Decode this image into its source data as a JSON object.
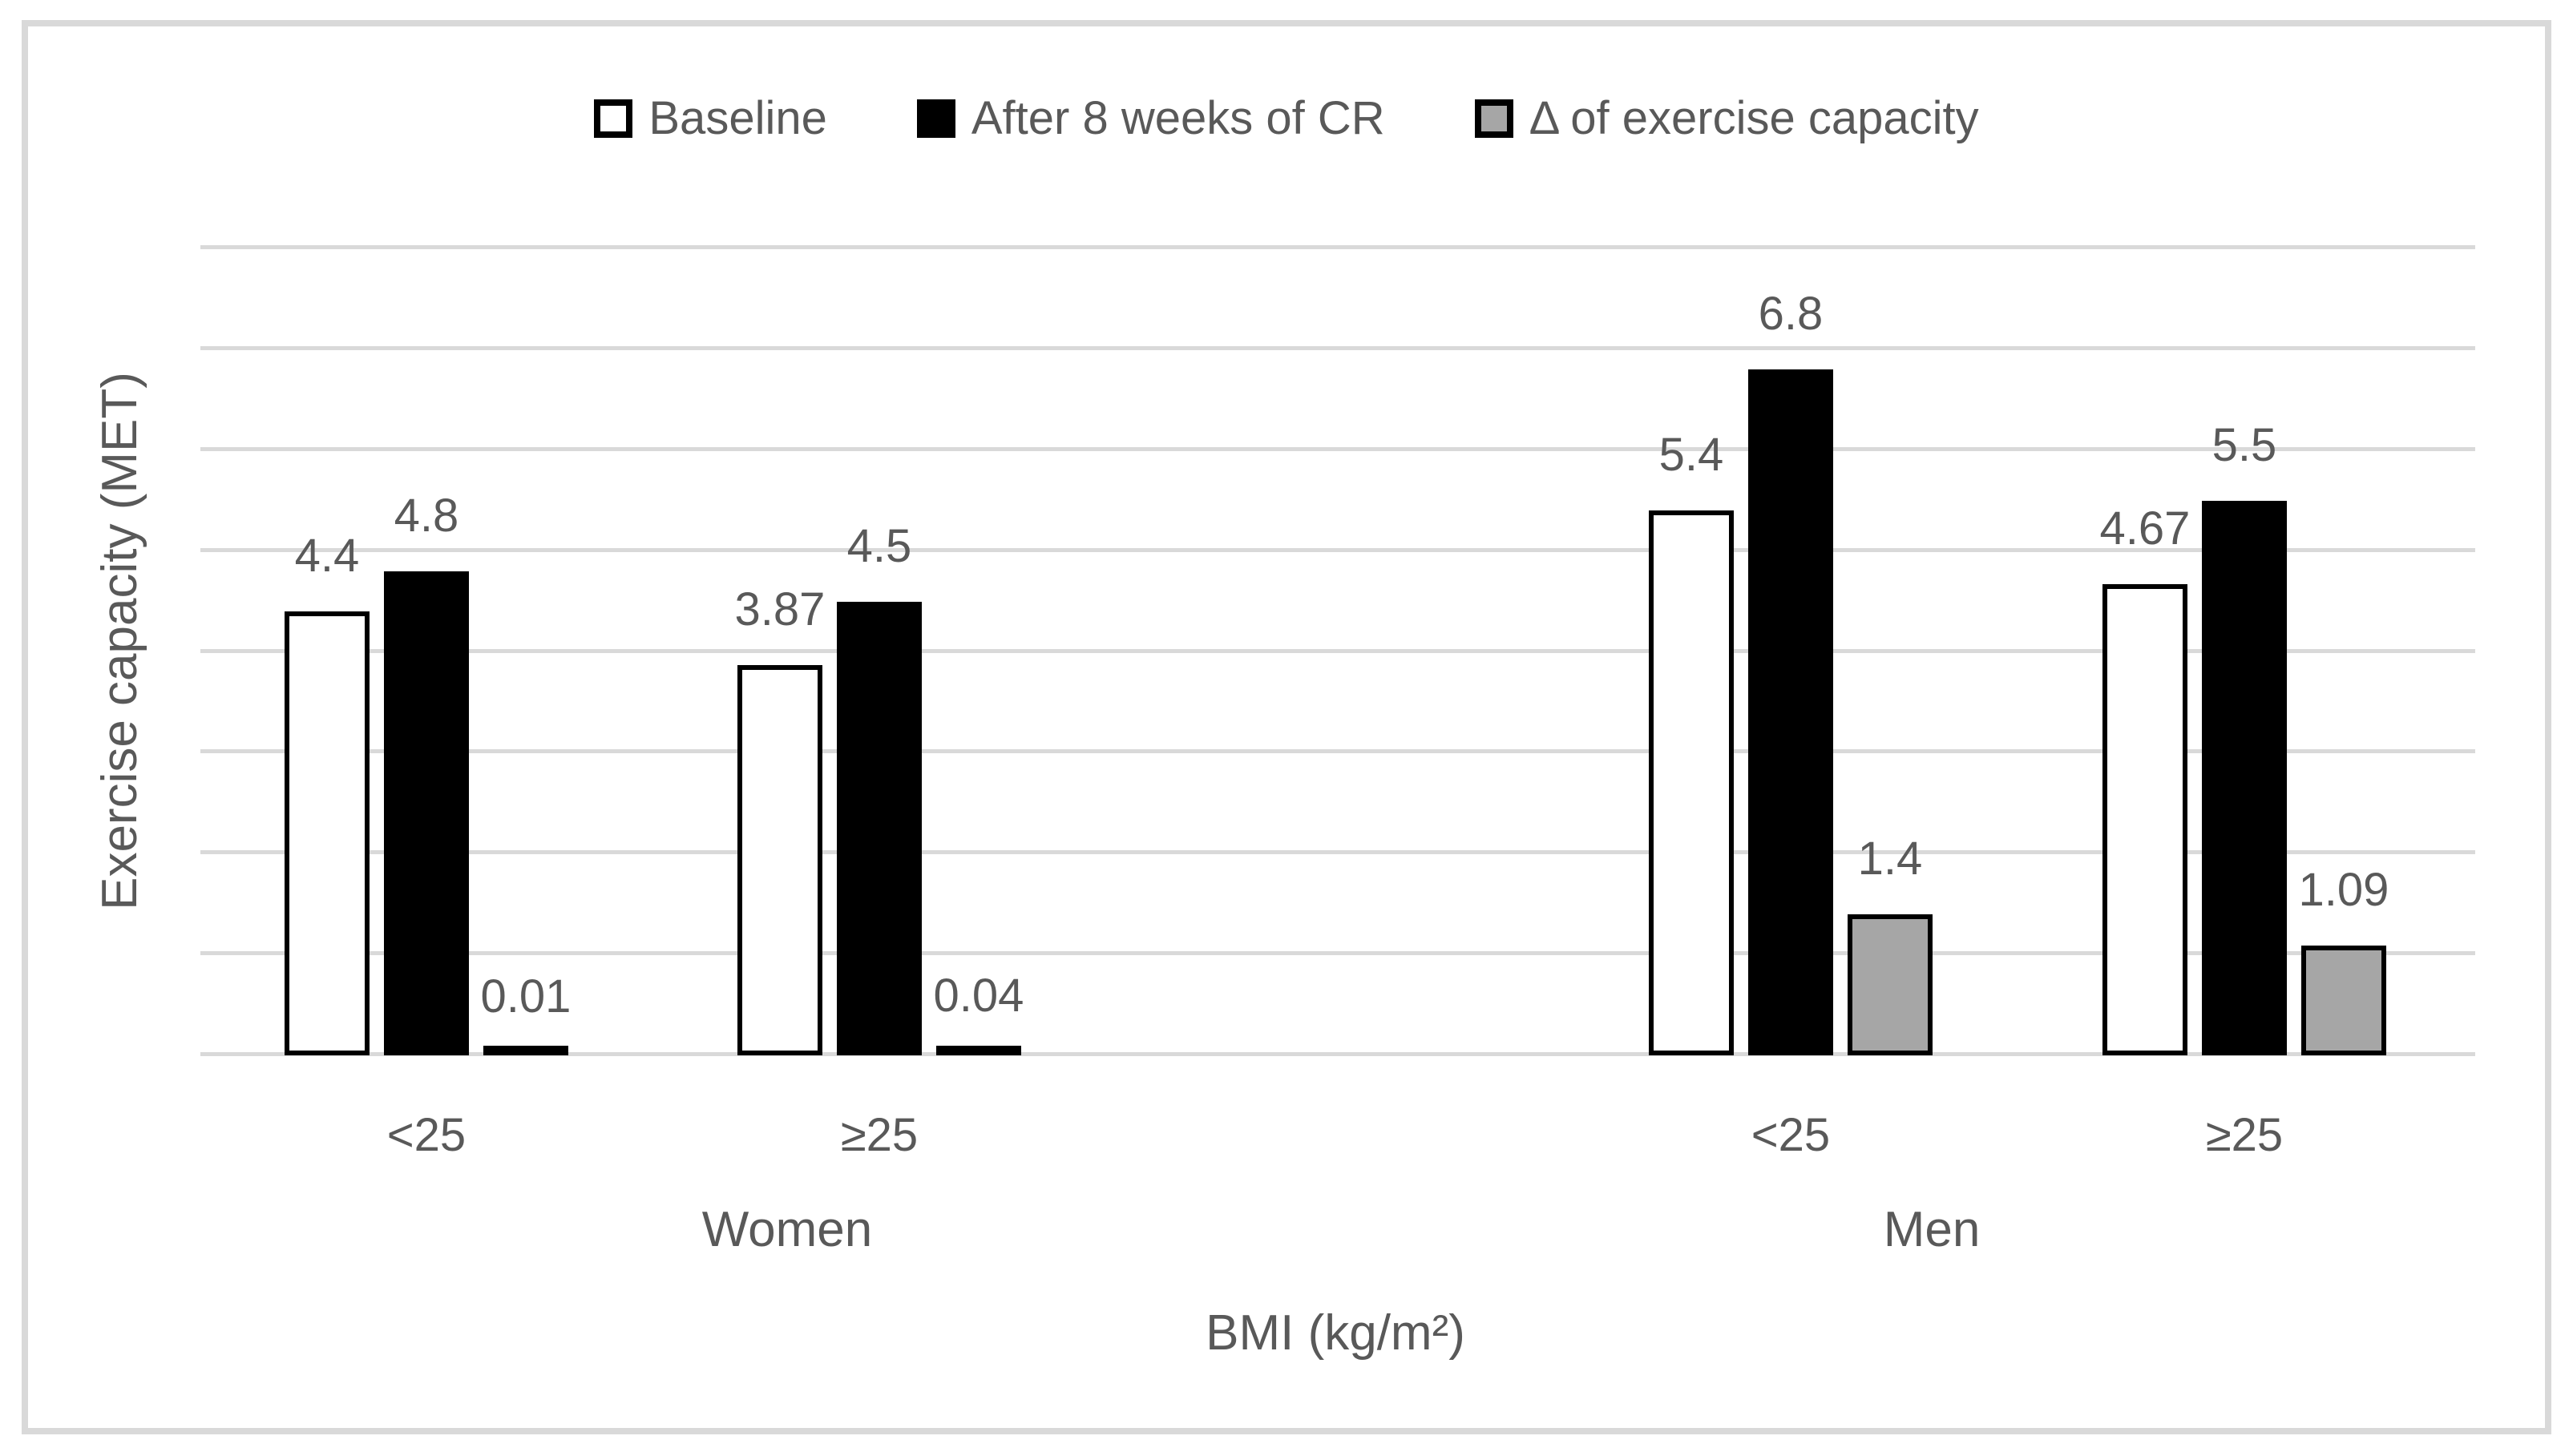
{
  "figure": {
    "background": "#FFFFFF",
    "frame_color": "#D9D9D9"
  },
  "legend": {
    "position": "top",
    "items": [
      {
        "label": "Baseline",
        "fill": "#FFFFFF",
        "border": "#000000"
      },
      {
        "label": "After 8 weeks of CR",
        "fill": "#000000",
        "border": "#000000"
      },
      {
        "label": "Δ of exercise capacity",
        "fill": "#A6A6A6",
        "border": "#000000"
      }
    ]
  },
  "chart_data": {
    "type": "bar",
    "title": "",
    "ylabel": "Exercise capacity (MET)",
    "xlabel": "BMI (kg/m²)",
    "ylim": [
      0,
      8
    ],
    "y_major_unit": 1,
    "y_tick_labels_visible": false,
    "gridlines": "horizontal",
    "grid_color": "#D9D9D9",
    "text_color": "#595959",
    "legend_position": "top",
    "categories": [
      "<25",
      "≥25",
      "<25",
      "≥25"
    ],
    "category_groups": [
      {
        "label": "Women",
        "category_indexes": [
          0,
          1
        ]
      },
      {
        "label": "Men",
        "category_indexes": [
          2,
          3
        ]
      }
    ],
    "series": [
      {
        "name": "Baseline",
        "fill": "#FFFFFF",
        "border": "#000000",
        "values": [
          4.4,
          3.87,
          5.4,
          4.67
        ],
        "data_labels": [
          "4.4",
          "3.87",
          "5.4",
          "4.67"
        ]
      },
      {
        "name": "After 8 weeks of CR",
        "fill": "#000000",
        "border": "#000000",
        "values": [
          4.8,
          4.5,
          6.8,
          5.5
        ],
        "data_labels": [
          "4.8",
          "4.5",
          "6.8",
          "5.5"
        ]
      },
      {
        "name": "Δ of exercise capacity",
        "fill": "#A6A6A6",
        "border": "#000000",
        "values": [
          0.01,
          0.04,
          1.4,
          1.09
        ],
        "data_labels": [
          "0.01",
          "0.04",
          "1.4",
          "1.09"
        ]
      }
    ]
  }
}
